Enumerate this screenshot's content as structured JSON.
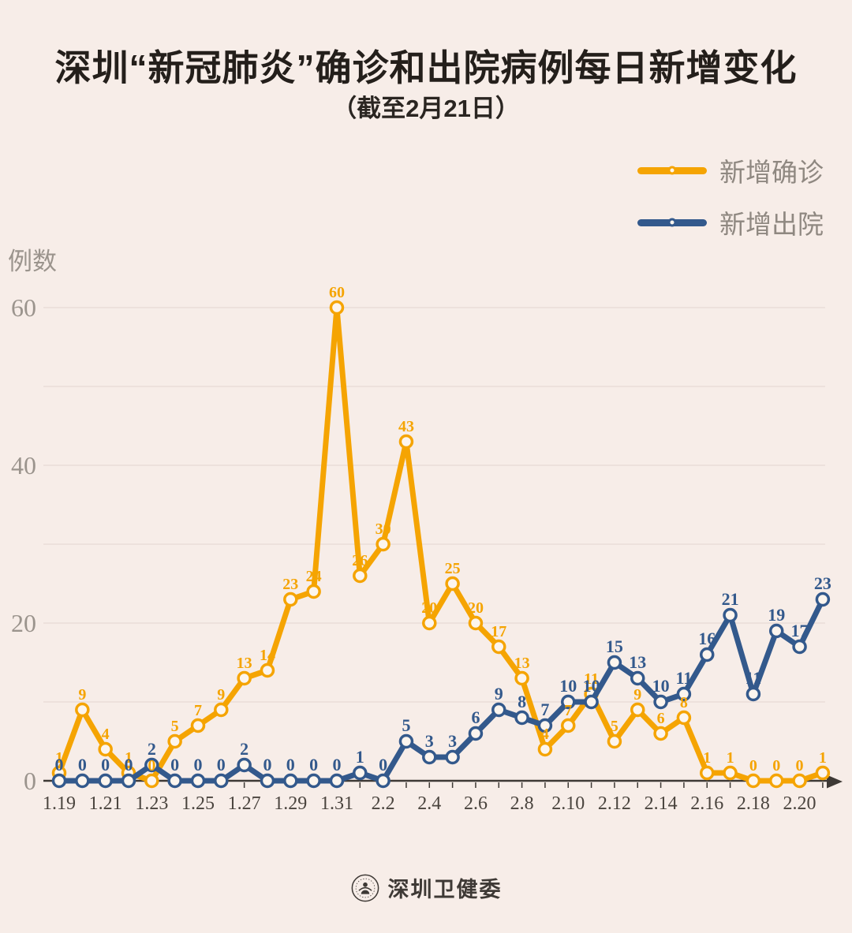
{
  "page": {
    "background": "#F7EDE8"
  },
  "header": {
    "title": "深圳“新冠肺炎”确诊和出院病例每日新增变化",
    "subtitle": "（截至2月21日）"
  },
  "legend": [
    {
      "label": "新增确诊",
      "color": "#F5A402"
    },
    {
      "label": "新增出院",
      "color": "#33598C"
    }
  ],
  "footer": {
    "org": "深圳卫健委"
  },
  "chart_data": {
    "type": "line",
    "title": "深圳“新冠肺炎”确诊和出院病例每日新增变化",
    "subtitle": "（截至2月21日）",
    "xlabel": "",
    "ylabel": "例数",
    "categories": [
      "1.19",
      "1.20",
      "1.21",
      "1.22",
      "1.23",
      "1.24",
      "1.25",
      "1.26",
      "1.27",
      "1.28",
      "1.29",
      "1.30",
      "1.31",
      "2.1",
      "2.2",
      "2.3",
      "2.4",
      "2.5",
      "2.6",
      "2.7",
      "2.8",
      "2.9",
      "2.10",
      "2.11",
      "2.12",
      "2.13",
      "2.14",
      "2.15",
      "2.16",
      "2.17",
      "2.18",
      "2.19",
      "2.20",
      "2.21"
    ],
    "x_tick_labels": [
      "1.19",
      "1.21",
      "1.23",
      "1.25",
      "1.27",
      "1.29",
      "1.31",
      "2.2",
      "2.4",
      "2.6",
      "2.8",
      "2.10",
      "2.12",
      "2.14",
      "2.16",
      "2.18",
      "2.20"
    ],
    "y_ticks": [
      0,
      20,
      40,
      60
    ],
    "ylim": [
      0,
      62
    ],
    "grid": true,
    "grid_interval": 10,
    "legend_position": "top-right",
    "point_labels": true,
    "series": [
      {
        "name": "新增确诊",
        "color": "#F5A402",
        "values": [
          1,
          9,
          4,
          1,
          0,
          5,
          7,
          9,
          13,
          14,
          23,
          24,
          60,
          26,
          30,
          43,
          20,
          25,
          20,
          17,
          13,
          4,
          7,
          11,
          5,
          9,
          6,
          8,
          1,
          1,
          0,
          0,
          0,
          1
        ]
      },
      {
        "name": "新增出院",
        "color": "#33598C",
        "values": [
          0,
          0,
          0,
          0,
          2,
          0,
          0,
          0,
          2,
          0,
          0,
          0,
          0,
          1,
          0,
          5,
          3,
          3,
          6,
          9,
          8,
          7,
          10,
          10,
          15,
          13,
          10,
          11,
          16,
          21,
          11,
          19,
          17,
          23
        ]
      }
    ]
  }
}
